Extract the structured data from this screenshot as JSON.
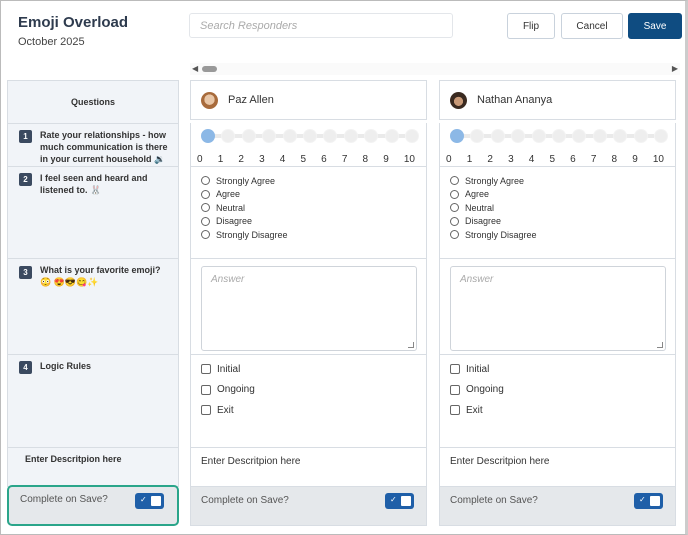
{
  "header": {
    "title": "Emoji Overload",
    "subtitle": "October 2025"
  },
  "search": {
    "placeholder": "Search Responders"
  },
  "toolbar": {
    "flip_label": "Flip",
    "cancel_label": "Cancel",
    "save_label": "Save"
  },
  "colors": {
    "primary": "#0f4c81",
    "toggle": "#1f5fa8",
    "highlight": "#2aa58a"
  },
  "questions": {
    "header": "Questions",
    "items": [
      {
        "num": "1",
        "text": "Rate your relationships - how much communication is there in your current household 🔉"
      },
      {
        "num": "2",
        "text": "I feel seen and heard and listened to. 🐰"
      },
      {
        "num": "3",
        "text": "What is your favorite emoji?😳 😍😎😋✨"
      },
      {
        "num": "4",
        "text": "Logic Rules"
      }
    ],
    "description": "Enter Descritpion here",
    "complete_label": "Complete on Save?",
    "complete_on": true
  },
  "responders": [
    {
      "name": "Paz Allen",
      "rating": 0,
      "scale": [
        "0",
        "1",
        "2",
        "3",
        "4",
        "5",
        "6",
        "7",
        "8",
        "9",
        "10"
      ],
      "options": [
        "Strongly Agree",
        "Agree",
        "Neutral",
        "Disagree",
        "Strongly Disagree"
      ],
      "answer_placeholder": "Answer",
      "checks": [
        "Initial",
        "Ongoing",
        "Exit"
      ],
      "description": "Enter Descritpion here",
      "complete_label": "Complete on Save?",
      "complete_on": true
    },
    {
      "name": "Nathan Ananya",
      "rating": 0,
      "scale": [
        "0",
        "1",
        "2",
        "3",
        "4",
        "5",
        "6",
        "7",
        "8",
        "9",
        "10"
      ],
      "options": [
        "Strongly Agree",
        "Agree",
        "Neutral",
        "Disagree",
        "Strongly Disagree"
      ],
      "answer_placeholder": "Answer",
      "checks": [
        "Initial",
        "Ongoing",
        "Exit"
      ],
      "description": "Enter Descritpion here",
      "complete_label": "Complete on Save?",
      "complete_on": true
    }
  ]
}
